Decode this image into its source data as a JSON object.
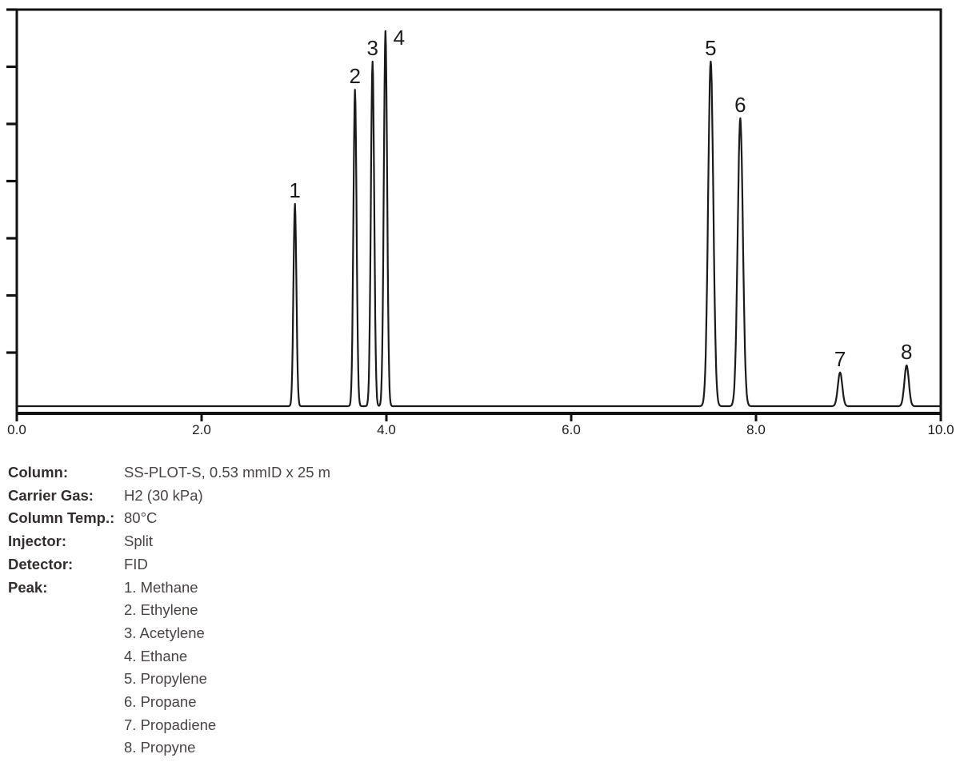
{
  "chart_data": {
    "type": "line",
    "kind": "gas-chromatogram",
    "title": "",
    "xlabel": "",
    "ylabel": "",
    "grid": false,
    "legend_position": "none",
    "line_color": "#1b1b1b",
    "axis_color": "#111111",
    "label_color": "#1c1c1c",
    "x_axis": {
      "min": 0,
      "max": 10,
      "tick_values": [
        0,
        2,
        4,
        6,
        8,
        10
      ],
      "tick_labels": [
        "0.0",
        "2.0",
        "4.0",
        "6.0",
        "8.0",
        "10.0"
      ]
    },
    "y_axis": {
      "labels_visible": false,
      "tick_count": 7
    },
    "peaks": [
      {
        "label": "1",
        "name": "Methane",
        "rt": 3.01,
        "height": 0.51,
        "sigma": 0.016
      },
      {
        "label": "2",
        "name": "Ethylene",
        "rt": 3.66,
        "height": 0.798,
        "sigma": 0.017
      },
      {
        "label": "3",
        "name": "Acetylene",
        "rt": 3.85,
        "height": 0.869,
        "sigma": 0.018
      },
      {
        "label": "4",
        "name": "Ethane",
        "rt": 3.99,
        "height": 0.946,
        "sigma": 0.018,
        "label_dx": 17,
        "label_dy": 17
      },
      {
        "label": "5",
        "name": "Propylene",
        "rt": 7.51,
        "height": 0.869,
        "sigma": 0.028
      },
      {
        "label": "6",
        "name": "Propane",
        "rt": 7.83,
        "height": 0.726,
        "sigma": 0.028
      },
      {
        "label": "7",
        "name": "Propadiene",
        "rt": 8.91,
        "height": 0.085,
        "sigma": 0.024
      },
      {
        "label": "8",
        "name": "Propyne",
        "rt": 9.63,
        "height": 0.103,
        "sigma": 0.024
      }
    ]
  },
  "info": {
    "rows": [
      {
        "label": "Column:",
        "value": "SS-PLOT-S, 0.53 mmID x 25 m"
      },
      {
        "label": "Carrier Gas:",
        "value": "H2 (30 kPa)"
      },
      {
        "label": "Column Temp.:",
        "value": "80°C"
      },
      {
        "label": "Injector:",
        "value": "Split"
      },
      {
        "label": "Detector:",
        "value": "FID"
      }
    ],
    "peak_label": "Peak:",
    "peak_items": [
      "1. Methane",
      "2. Ethylene",
      "3. Acetylene",
      "4. Ethane",
      "5. Propylene",
      "6. Propane",
      "7. Propadiene",
      "8. Propyne"
    ]
  }
}
